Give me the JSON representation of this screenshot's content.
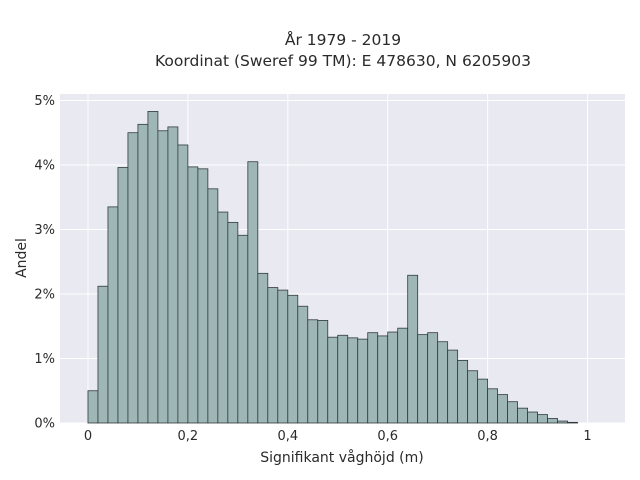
{
  "chart_data": {
    "type": "bar",
    "title_lines": [
      "År 1979 - 2019",
      "Koordinat (Sweref 99 TM): E 478630, N 6205903"
    ],
    "xlabel": "Signifikant våghöjd (m)",
    "ylabel": "Andel",
    "bin_width": 0.02,
    "bin_start": 0.0,
    "values": [
      0.5,
      2.12,
      3.35,
      3.96,
      4.5,
      4.63,
      4.83,
      4.53,
      4.59,
      4.31,
      3.97,
      3.94,
      3.63,
      3.27,
      3.11,
      2.91,
      4.05,
      2.32,
      2.1,
      2.06,
      1.98,
      1.81,
      1.6,
      1.59,
      1.33,
      1.36,
      1.32,
      1.3,
      1.4,
      1.35,
      1.41,
      1.47,
      2.29,
      1.37,
      1.4,
      1.26,
      1.13,
      0.97,
      0.81,
      0.68,
      0.53,
      0.44,
      0.33,
      0.23,
      0.17,
      0.13,
      0.07,
      0.03,
      0.01
    ],
    "xlim": [
      -0.056,
      1.075
    ],
    "ylim": [
      0,
      5.1
    ],
    "xticks": [
      0,
      0.2,
      0.4,
      0.6,
      0.8,
      1
    ],
    "xtick_labels": [
      "0",
      "0,2",
      "0,4",
      "0,6",
      "0,8",
      "1"
    ],
    "yticks": [
      0,
      1,
      2,
      3,
      4,
      5
    ],
    "ytick_labels": [
      "0%",
      "1%",
      "2%",
      "3%",
      "4%",
      "5%"
    ],
    "grid": true,
    "colors": {
      "background": "#e9e9f1",
      "grid": "#ffffff",
      "bar_fill": "#9fb6b6",
      "bar_stroke": "#2f3b3b"
    }
  }
}
